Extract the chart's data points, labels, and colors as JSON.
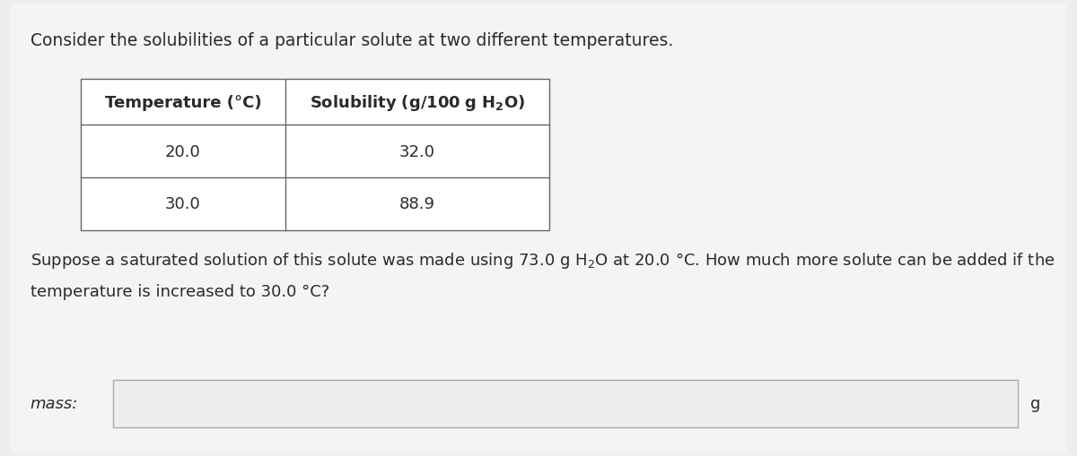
{
  "background_color": "#f0eeed",
  "card_color": "#f5f4f3",
  "title_text": "Consider the solubilities of a particular solute at two different temperatures.",
  "table_header_col1": "Temperature (°C)",
  "table_header_col2": "Solubility (g/100 g H₂O)",
  "table_rows": [
    [
      "20.0",
      "32.0"
    ],
    [
      "30.0",
      "88.9"
    ]
  ],
  "para_line1": "Suppose a saturated solution of this solute was made using 73.0 g H₂O at 20.0 °C. How much more solute can be added if the",
  "para_line2": "temperature is increased to 30.0 °C?",
  "mass_label": "mass:",
  "unit_label": "g",
  "title_fontsize": 13.5,
  "body_fontsize": 13.0,
  "table_fontsize": 13.0,
  "table_header_fontsize": 13.0,
  "text_color": "#2a2a2a",
  "table_border_color": "#666666",
  "input_box_facecolor": "#f0eeec",
  "input_box_edgecolor": "#aaaaaa"
}
